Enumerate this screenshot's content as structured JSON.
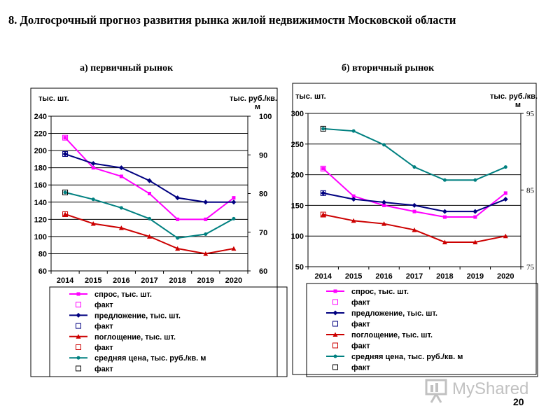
{
  "slide": {
    "title": "8. Долгосрочный прогноз развития рынка жилой недвижимости Московской области",
    "page_number": "20",
    "watermark": "MyShared"
  },
  "chart_data": [
    {
      "type": "line",
      "subtitle": "а) первичный рынок",
      "left_unit": "тыс. шт.",
      "right_unit_line1": "тыс. руб./кв.",
      "right_unit_line2": "м",
      "categories": [
        "2014",
        "2015",
        "2016",
        "2017",
        "2018",
        "2019",
        "2020"
      ],
      "left_ylim": [
        60,
        240
      ],
      "left_ticks": [
        "60",
        "80",
        "100",
        "120",
        "140",
        "160",
        "180",
        "200",
        "220",
        "240"
      ],
      "right_ylim": [
        60,
        100
      ],
      "right_ticks": [
        "60",
        "70",
        "80",
        "90",
        "100"
      ],
      "series": [
        {
          "name": "спрос, тыс. шт.",
          "fact_name": "факт",
          "axis": "left",
          "color": "#ff00ff",
          "marker": "square",
          "values": [
            215,
            180,
            170,
            150,
            120,
            120,
            145
          ],
          "fact": 215
        },
        {
          "name": "предложение, тыс. шт.",
          "fact_name": "факт",
          "axis": "left",
          "color": "#000080",
          "marker": "diamond",
          "values": [
            196,
            185,
            180,
            165,
            145,
            140,
            140
          ],
          "fact": 196
        },
        {
          "name": "поглощение, тыс. шт.",
          "fact_name": "факт",
          "axis": "left",
          "color": "#cc0000",
          "marker": "triangle",
          "values": [
            126,
            115,
            110,
            100,
            86,
            80,
            86
          ],
          "fact": 126
        },
        {
          "name": "средняя цена, тыс. руб./кв. м",
          "fact_name": "факт",
          "axis": "right",
          "color": "#008080",
          "marker": "circle",
          "values": [
            80.3,
            78.5,
            76.3,
            73.5,
            68.5,
            69.5,
            73.5
          ],
          "fact": 80.3
        }
      ]
    },
    {
      "type": "line",
      "subtitle": "б) вторичный рынок",
      "left_unit": "тыс. шт.",
      "right_unit_line1": "тыс. руб./кв.",
      "right_unit_line2": "м",
      "categories": [
        "2014",
        "2015",
        "2016",
        "2017",
        "2018",
        "2019",
        "2020"
      ],
      "left_ylim": [
        50,
        300
      ],
      "left_ticks": [
        "50",
        "100",
        "150",
        "200",
        "250",
        "300"
      ],
      "right_ylim": [
        75,
        95
      ],
      "right_ticks": [
        "75",
        "85",
        "95"
      ],
      "series": [
        {
          "name": "спрос, тыс. шт.",
          "fact_name": "факт",
          "axis": "left",
          "color": "#ff00ff",
          "marker": "square",
          "values": [
            210,
            165,
            150,
            140,
            131,
            131,
            170
          ],
          "fact": 210
        },
        {
          "name": "предложение, тыс. шт.",
          "fact_name": "факт",
          "axis": "left",
          "color": "#000080",
          "marker": "diamond",
          "values": [
            170,
            160,
            155,
            150,
            140,
            140,
            160
          ],
          "fact": 170
        },
        {
          "name": "поглощение, тыс. шт.",
          "fact_name": "факт",
          "axis": "left",
          "color": "#cc0000",
          "marker": "triangle",
          "values": [
            135,
            125,
            120,
            110,
            90,
            90,
            100
          ],
          "fact": 135
        },
        {
          "name": "средняя цена, тыс. руб./кв. м",
          "fact_name": "факт",
          "axis": "right",
          "color": "#008080",
          "marker": "circle",
          "values": [
            93.0,
            92.7,
            90.9,
            88.0,
            86.3,
            86.3,
            88.0
          ],
          "fact": 93.0
        }
      ]
    }
  ]
}
